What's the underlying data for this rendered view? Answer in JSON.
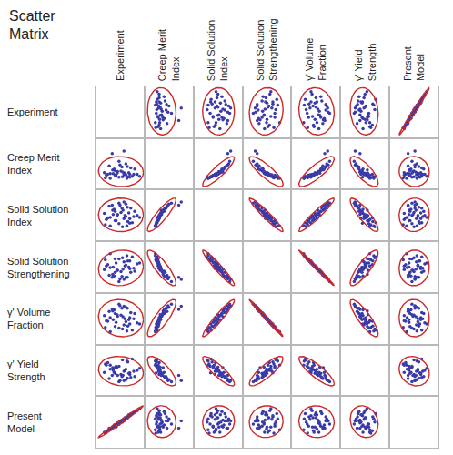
{
  "chart_data": {
    "type": "scatter_matrix",
    "title": "Scatter Matrix",
    "variables": [
      {
        "name": "Experiment",
        "values": [
          0.3,
          0.55,
          0.4,
          0.7,
          0.25,
          0.6,
          0.45,
          0.8,
          0.35,
          0.65,
          0.5,
          0.75,
          0.2,
          0.58,
          0.42,
          0.68,
          0.3,
          0.52,
          0.72,
          0.38,
          0.62,
          0.48,
          0.85,
          0.22,
          0.56,
          0.44,
          0.66,
          0.28,
          0.78,
          0.48,
          0.34,
          0.58,
          0.9,
          0.18,
          0.62,
          0.4,
          0.64,
          0.54,
          0.36,
          0.7
        ]
      },
      {
        "name": "Creep Merit Index",
        "values": [
          0.22,
          0.25,
          0.28,
          0.24,
          0.3,
          0.32,
          0.35,
          0.4,
          0.38,
          0.45,
          0.48,
          0.26,
          0.23,
          0.29,
          0.27,
          0.33,
          0.31,
          0.36,
          0.42,
          0.4,
          0.5,
          0.55,
          0.3,
          0.28,
          0.34,
          0.32,
          0.25,
          0.46,
          0.3,
          0.24,
          0.7,
          0.75,
          0.26,
          0.33,
          0.29,
          0.37,
          0.22,
          0.44,
          0.31,
          0.3
        ]
      },
      {
        "name": "Solid Solution Index",
        "values": [
          0.3,
          0.28,
          0.4,
          0.35,
          0.45,
          0.5,
          0.52,
          0.58,
          0.6,
          0.66,
          0.7,
          0.36,
          0.32,
          0.44,
          0.4,
          0.55,
          0.46,
          0.56,
          0.64,
          0.62,
          0.72,
          0.74,
          0.5,
          0.42,
          0.6,
          0.5,
          0.38,
          0.68,
          0.48,
          0.34,
          0.7,
          0.76,
          0.46,
          0.54,
          0.48,
          0.58,
          0.3,
          0.64,
          0.52,
          0.44
        ]
      },
      {
        "name": "Solid Solution Strengthening",
        "values": [
          0.76,
          0.68,
          0.66,
          0.62,
          0.55,
          0.52,
          0.44,
          0.42,
          0.36,
          0.3,
          0.27,
          0.7,
          0.64,
          0.6,
          0.58,
          0.5,
          0.49,
          0.41,
          0.4,
          0.33,
          0.3,
          0.22,
          0.56,
          0.52,
          0.46,
          0.44,
          0.62,
          0.34,
          0.48,
          0.66,
          0.3,
          0.26,
          0.58,
          0.45,
          0.54,
          0.4,
          0.72,
          0.32,
          0.5,
          0.47
        ]
      },
      {
        "name": "γ' Volume Fraction",
        "values": [
          0.25,
          0.3,
          0.35,
          0.4,
          0.45,
          0.5,
          0.55,
          0.6,
          0.65,
          0.7,
          0.75,
          0.28,
          0.33,
          0.38,
          0.43,
          0.48,
          0.52,
          0.57,
          0.62,
          0.67,
          0.72,
          0.78,
          0.42,
          0.46,
          0.54,
          0.58,
          0.36,
          0.64,
          0.5,
          0.32,
          0.68,
          0.74,
          0.4,
          0.56,
          0.44,
          0.6,
          0.26,
          0.7,
          0.48,
          0.52
        ]
      },
      {
        "name": "γ' Yield Strength",
        "values": [
          0.6,
          0.7,
          0.55,
          0.45,
          0.65,
          0.5,
          0.4,
          0.38,
          0.55,
          0.35,
          0.3,
          0.72,
          0.62,
          0.48,
          0.58,
          0.44,
          0.52,
          0.42,
          0.36,
          0.46,
          0.32,
          0.28,
          0.5,
          0.6,
          0.4,
          0.56,
          0.66,
          0.34,
          0.48,
          0.58,
          0.4,
          0.3,
          0.54,
          0.46,
          0.52,
          0.44,
          0.68,
          0.38,
          0.5,
          0.42
        ]
      },
      {
        "name": "Present Model",
        "values": [
          0.35,
          0.5,
          0.42,
          0.62,
          0.33,
          0.58,
          0.48,
          0.7,
          0.4,
          0.6,
          0.52,
          0.66,
          0.28,
          0.55,
          0.4,
          0.64,
          0.36,
          0.5,
          0.66,
          0.44,
          0.56,
          0.46,
          0.72,
          0.3,
          0.54,
          0.46,
          0.6,
          0.38,
          0.68,
          0.46,
          0.38,
          0.52,
          0.76,
          0.3,
          0.58,
          0.42,
          0.56,
          0.52,
          0.4,
          0.64
        ]
      }
    ],
    "color": "#3a3aa8",
    "xlim": [
      0,
      1
    ],
    "ylim": [
      0,
      1
    ],
    "tick_labels": false,
    "grid": false
  }
}
